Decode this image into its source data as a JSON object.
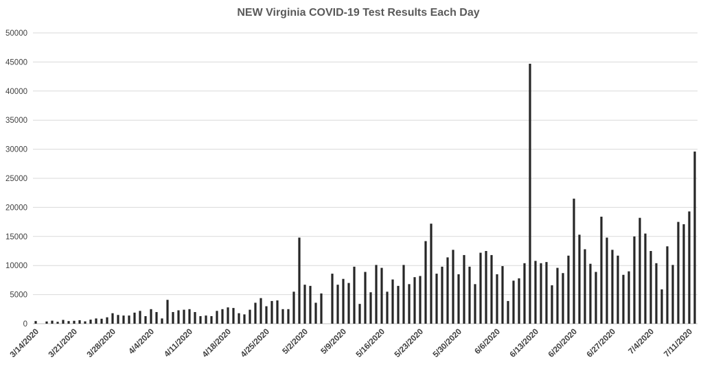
{
  "chart_data": {
    "type": "bar",
    "title": "NEW Virginia COVID-19 Test Results Each Day",
    "xlabel": "",
    "ylabel": "",
    "ylim": [
      0,
      50000
    ],
    "yticks": [
      0,
      5000,
      10000,
      15000,
      20000,
      25000,
      30000,
      35000,
      40000,
      45000,
      50000
    ],
    "grid": true,
    "legend": "none",
    "bar_color": "#262626",
    "grid_color": "#d9d9d9",
    "start_date": "3/14/2020",
    "xtick_labels": [
      "3/14/2020",
      "3/21/2020",
      "3/28/2020",
      "4/4/2020",
      "4/11/2020",
      "4/18/2020",
      "4/25/2020",
      "5/2/2020",
      "5/9/2020",
      "5/16/2020",
      "5/23/2020",
      "5/30/2020",
      "6/6/2020",
      "6/13/2020",
      "6/20/2020",
      "6/27/2020",
      "7/4/2020",
      "7/11/2020"
    ],
    "values": [
      450,
      0,
      380,
      520,
      320,
      650,
      450,
      500,
      600,
      400,
      700,
      900,
      850,
      1100,
      1800,
      1500,
      1400,
      1400,
      1900,
      2200,
      1300,
      2500,
      2000,
      900,
      4100,
      2000,
      2300,
      2400,
      2500,
      2000,
      1300,
      1400,
      1300,
      2200,
      2500,
      2800,
      2700,
      1800,
      1600,
      2400,
      3600,
      4400,
      3000,
      3900,
      4000,
      2500,
      2500,
      5500,
      14800,
      6700,
      6500,
      3600,
      5200,
      0,
      8600,
      6700,
      7700,
      7000,
      9800,
      3400,
      8900,
      5400,
      10100,
      9600,
      5500,
      7600,
      6500,
      10100,
      6800,
      8000,
      8200,
      14200,
      17200,
      8600,
      9800,
      11400,
      12700,
      8500,
      11800,
      9800,
      6800,
      12200,
      12500,
      11800,
      8500,
      9900,
      3900,
      7400,
      7800,
      10400,
      44700,
      10800,
      10400,
      10600,
      6600,
      9600,
      8700,
      11700,
      21500,
      15300,
      12800,
      10300,
      8900,
      18400,
      14800,
      12700,
      11700,
      8400,
      9000,
      15000,
      18200,
      15500,
      12500,
      10400,
      5900,
      13300,
      10100,
      17500,
      17100,
      19300,
      29600
    ]
  }
}
